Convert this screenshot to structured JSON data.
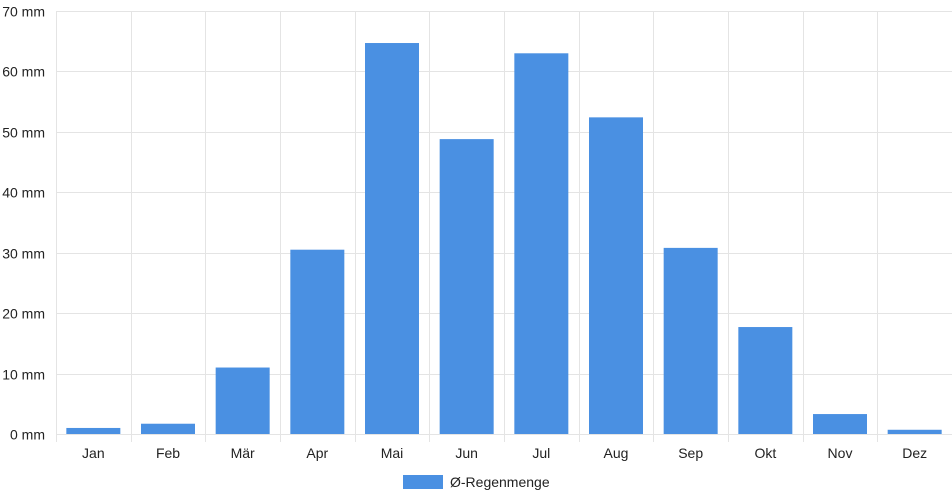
{
  "chart_data": {
    "type": "bar",
    "categories": [
      "Jan",
      "Feb",
      "Mär",
      "Apr",
      "Mai",
      "Jun",
      "Jul",
      "Aug",
      "Sep",
      "Okt",
      "Nov",
      "Dez"
    ],
    "series": [
      {
        "name": "Ø-Regenmenge",
        "color": "#4a90e2",
        "values": [
          1.0,
          1.7,
          11.0,
          30.5,
          64.7,
          48.8,
          63.0,
          52.4,
          30.8,
          17.7,
          3.3,
          0.7
        ]
      }
    ],
    "ylim": [
      0,
      70
    ],
    "yticks": [
      0,
      10,
      20,
      30,
      40,
      50,
      60,
      70
    ],
    "y_unit": "mm",
    "grid": true,
    "legend_position": "bottom",
    "title": "",
    "xlabel": "",
    "ylabel": ""
  }
}
